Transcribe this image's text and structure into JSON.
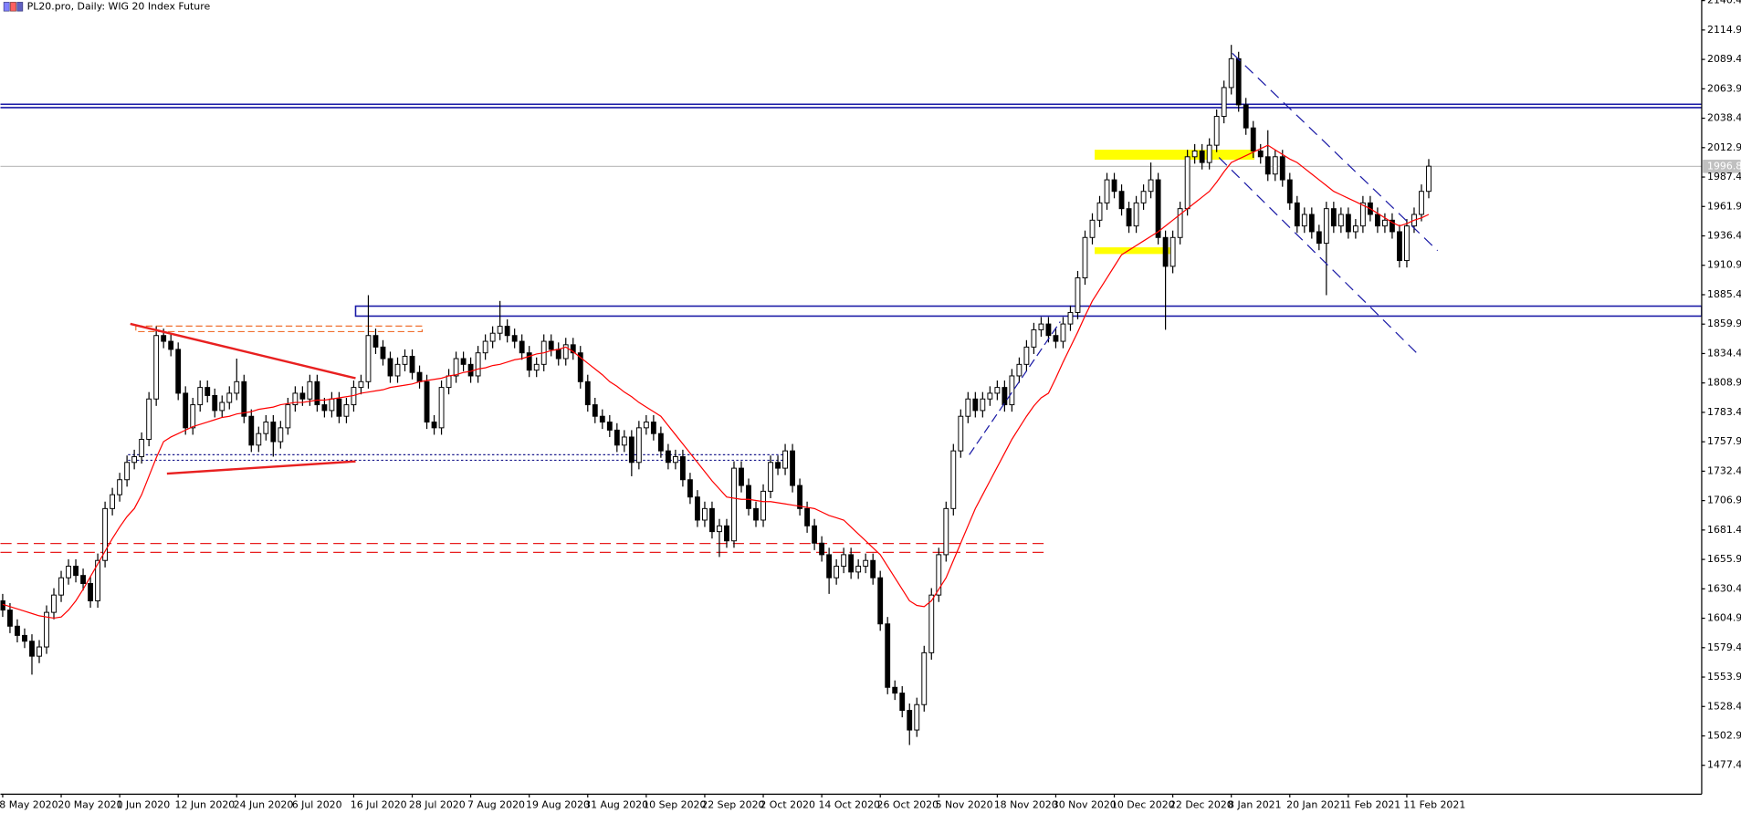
{
  "chart_data": {
    "type": "candlestick",
    "title": "PL20.pro, Daily:  WIG 20 Index Future",
    "categories": [
      "8 May 2020",
      null,
      null,
      null,
      null,
      null,
      null,
      null,
      "20 May 2020",
      null,
      null,
      null,
      null,
      null,
      null,
      null,
      "1 Jun 2020",
      null,
      null,
      null,
      null,
      null,
      null,
      null,
      "12 Jun 2020",
      null,
      null,
      null,
      null,
      null,
      null,
      null,
      "24 Jun 2020",
      null,
      null,
      null,
      null,
      null,
      null,
      null,
      "6 Jul 2020",
      null,
      null,
      null,
      null,
      null,
      null,
      null,
      "16 Jul 2020",
      null,
      null,
      null,
      null,
      null,
      null,
      null,
      "28 Jul 2020",
      null,
      null,
      null,
      null,
      null,
      null,
      null,
      "7 Aug 2020",
      null,
      null,
      null,
      null,
      null,
      null,
      null,
      "19 Aug 2020",
      null,
      null,
      null,
      null,
      null,
      null,
      null,
      "31 Aug 2020",
      null,
      null,
      null,
      null,
      null,
      null,
      null,
      "10 Sep 2020",
      null,
      null,
      null,
      null,
      null,
      null,
      null,
      "22 Sep 2020",
      null,
      null,
      null,
      null,
      null,
      null,
      null,
      "2 Oct 2020",
      null,
      null,
      null,
      null,
      null,
      null,
      null,
      "14 Oct 2020",
      null,
      null,
      null,
      null,
      null,
      null,
      null,
      "26 Oct 2020",
      null,
      null,
      null,
      null,
      null,
      null,
      null,
      "5 Nov 2020",
      null,
      null,
      null,
      null,
      null,
      null,
      null,
      "18 Nov 2020",
      null,
      null,
      null,
      null,
      null,
      null,
      null,
      "30 Nov 2020",
      null,
      null,
      null,
      null,
      null,
      null,
      null,
      "10 Dec 2020",
      null,
      null,
      null,
      null,
      null,
      null,
      null,
      "22 Dec 2020",
      null,
      null,
      null,
      null,
      null,
      null,
      null,
      "8 Jan 2021",
      null,
      null,
      null,
      null,
      null,
      null,
      null,
      "20 Jan 2021",
      null,
      null,
      null,
      null,
      null,
      null,
      null,
      "1 Feb 2021",
      null,
      null,
      null,
      null,
      null,
      null,
      null,
      "11 Feb 2021",
      null,
      null,
      null
    ],
    "open": [
      1620,
      1612,
      1598,
      1590,
      1585,
      1572,
      1580,
      1610,
      1625,
      1640,
      1650,
      1642,
      1635,
      1620,
      1655,
      1700,
      1712,
      1725,
      1740,
      1745,
      1760,
      1795,
      1850,
      1845,
      1838,
      1800,
      1770,
      1790,
      1805,
      1798,
      1785,
      1792,
      1800,
      1810,
      1780,
      1755,
      1765,
      1775,
      1758,
      1770,
      1790,
      1800,
      1795,
      1810,
      1790,
      1785,
      1795,
      1780,
      1790,
      1805,
      1810,
      1850,
      1840,
      1830,
      1815,
      1825,
      1832,
      1818,
      1810,
      1775,
      1770,
      1805,
      1815,
      1830,
      1825,
      1815,
      1835,
      1845,
      1852,
      1858,
      1850,
      1845,
      1835,
      1820,
      1825,
      1845,
      1838,
      1830,
      1842,
      1835,
      1810,
      1790,
      1780,
      1775,
      1768,
      1755,
      1762,
      1740,
      1770,
      1775,
      1765,
      1750,
      1740,
      1745,
      1725,
      1710,
      1690,
      1700,
      1680,
      1685,
      1672,
      1735,
      1720,
      1700,
      1690,
      1715,
      1740,
      1735,
      1750,
      1720,
      1700,
      1685,
      1670,
      1660,
      1640,
      1650,
      1660,
      1645,
      1650,
      1655,
      1640,
      1600,
      1545,
      1540,
      1525,
      1508,
      1530,
      1575,
      1625,
      1660,
      1700,
      1750,
      1780,
      1795,
      1785,
      1795,
      1800,
      1805,
      1790,
      1815,
      1825,
      1840,
      1855,
      1860,
      1850,
      1845,
      1860,
      1870,
      1900,
      1935,
      1950,
      1965,
      1985,
      1975,
      1960,
      1945,
      1965,
      1975,
      1985,
      1935,
      1910,
      1935,
      1960,
      2005,
      2010,
      2000,
      2015,
      2040,
      2065,
      2090,
      2050,
      2030,
      2010,
      2005,
      1990,
      2005,
      1985,
      1965,
      1945,
      1955,
      1940,
      1930,
      1960,
      1945,
      1955,
      1940,
      1945,
      1965,
      1955,
      1945,
      1950,
      1940,
      1915,
      1945,
      1955,
      1975
    ],
    "high": [
      1626,
      1618,
      1604,
      1596,
      1591,
      1586,
      1616,
      1631,
      1646,
      1656,
      1656,
      1648,
      1641,
      1661,
      1706,
      1718,
      1731,
      1746,
      1751,
      1766,
      1801,
      1858,
      1856,
      1851,
      1844,
      1806,
      1796,
      1811,
      1811,
      1804,
      1798,
      1806,
      1830,
      1816,
      1786,
      1771,
      1781,
      1781,
      1776,
      1796,
      1806,
      1806,
      1816,
      1816,
      1796,
      1801,
      1801,
      1796,
      1811,
      1816,
      1885,
      1856,
      1846,
      1836,
      1831,
      1838,
      1838,
      1824,
      1816,
      1781,
      1811,
      1821,
      1836,
      1836,
      1831,
      1841,
      1851,
      1858,
      1880,
      1864,
      1856,
      1851,
      1841,
      1831,
      1851,
      1851,
      1844,
      1848,
      1848,
      1841,
      1816,
      1796,
      1786,
      1781,
      1774,
      1768,
      1768,
      1776,
      1781,
      1781,
      1771,
      1756,
      1751,
      1751,
      1731,
      1716,
      1706,
      1706,
      1691,
      1691,
      1741,
      1741,
      1726,
      1706,
      1721,
      1746,
      1746,
      1756,
      1756,
      1726,
      1706,
      1691,
      1676,
      1666,
      1656,
      1666,
      1666,
      1656,
      1661,
      1661,
      1646,
      1606,
      1551,
      1546,
      1531,
      1536,
      1581,
      1631,
      1666,
      1706,
      1756,
      1786,
      1801,
      1801,
      1801,
      1806,
      1811,
      1811,
      1821,
      1831,
      1846,
      1861,
      1866,
      1866,
      1856,
      1866,
      1876,
      1906,
      1941,
      1956,
      1971,
      1991,
      1991,
      1981,
      1966,
      1971,
      1981,
      2000,
      1991,
      1941,
      1941,
      1966,
      2011,
      2016,
      2016,
      2021,
      2046,
      2071,
      2102,
      2096,
      2056,
      2036,
      2016,
      2028,
      2011,
      2011,
      1991,
      1971,
      1961,
      1961,
      1946,
      1966,
      1966,
      1961,
      1961,
      1951,
      1971,
      1971,
      1961,
      1956,
      1956,
      1946,
      1951,
      1961,
      1981,
      2003
    ],
    "low": [
      1606,
      1592,
      1584,
      1579,
      1556,
      1566,
      1574,
      1604,
      1619,
      1634,
      1636,
      1629,
      1614,
      1614,
      1649,
      1694,
      1706,
      1719,
      1734,
      1739,
      1754,
      1789,
      1839,
      1832,
      1794,
      1764,
      1764,
      1784,
      1792,
      1779,
      1779,
      1786,
      1794,
      1774,
      1749,
      1749,
      1759,
      1745,
      1752,
      1764,
      1784,
      1789,
      1789,
      1784,
      1779,
      1779,
      1774,
      1774,
      1784,
      1799,
      1804,
      1834,
      1824,
      1809,
      1809,
      1819,
      1812,
      1804,
      1769,
      1764,
      1764,
      1799,
      1809,
      1819,
      1809,
      1809,
      1829,
      1839,
      1846,
      1844,
      1839,
      1829,
      1814,
      1814,
      1819,
      1832,
      1824,
      1824,
      1829,
      1804,
      1784,
      1774,
      1769,
      1762,
      1749,
      1749,
      1728,
      1734,
      1764,
      1759,
      1744,
      1734,
      1734,
      1719,
      1704,
      1684,
      1684,
      1674,
      1658,
      1666,
      1666,
      1714,
      1694,
      1684,
      1684,
      1709,
      1729,
      1729,
      1714,
      1694,
      1679,
      1664,
      1654,
      1626,
      1634,
      1644,
      1639,
      1639,
      1644,
      1634,
      1594,
      1539,
      1534,
      1519,
      1495,
      1502,
      1524,
      1569,
      1619,
      1654,
      1694,
      1744,
      1774,
      1779,
      1779,
      1789,
      1794,
      1784,
      1784,
      1809,
      1819,
      1834,
      1849,
      1844,
      1839,
      1839,
      1854,
      1864,
      1894,
      1929,
      1944,
      1959,
      1969,
      1954,
      1939,
      1939,
      1959,
      1969,
      1929,
      1855,
      1904,
      1929,
      1954,
      1999,
      1994,
      1994,
      2009,
      2034,
      2059,
      2044,
      2024,
      2004,
      1999,
      1984,
      1984,
      1979,
      1959,
      1939,
      1939,
      1934,
      1924,
      1885,
      1939,
      1939,
      1934,
      1934,
      1939,
      1949,
      1939,
      1939,
      1934,
      1909,
      1909,
      1939,
      1949,
      1969
    ],
    "close": [
      1612,
      1598,
      1590,
      1585,
      1572,
      1580,
      1610,
      1625,
      1640,
      1650,
      1642,
      1635,
      1620,
      1655,
      1700,
      1712,
      1725,
      1740,
      1745,
      1760,
      1795,
      1850,
      1845,
      1838,
      1800,
      1770,
      1790,
      1805,
      1798,
      1785,
      1792,
      1800,
      1810,
      1780,
      1755,
      1765,
      1775,
      1758,
      1770,
      1790,
      1800,
      1795,
      1810,
      1790,
      1785,
      1795,
      1780,
      1790,
      1805,
      1810,
      1850,
      1840,
      1830,
      1815,
      1825,
      1832,
      1818,
      1810,
      1775,
      1770,
      1805,
      1815,
      1830,
      1825,
      1815,
      1835,
      1845,
      1852,
      1858,
      1850,
      1845,
      1835,
      1820,
      1825,
      1845,
      1838,
      1830,
      1842,
      1835,
      1810,
      1790,
      1780,
      1775,
      1768,
      1755,
      1762,
      1740,
      1770,
      1775,
      1765,
      1750,
      1740,
      1745,
      1725,
      1710,
      1690,
      1700,
      1680,
      1685,
      1672,
      1735,
      1720,
      1700,
      1690,
      1715,
      1740,
      1735,
      1750,
      1720,
      1700,
      1685,
      1670,
      1660,
      1640,
      1650,
      1660,
      1645,
      1650,
      1655,
      1640,
      1600,
      1545,
      1540,
      1525,
      1508,
      1530,
      1575,
      1625,
      1660,
      1700,
      1750,
      1780,
      1795,
      1785,
      1795,
      1800,
      1805,
      1790,
      1815,
      1825,
      1840,
      1855,
      1860,
      1850,
      1845,
      1860,
      1870,
      1900,
      1935,
      1950,
      1965,
      1985,
      1975,
      1960,
      1945,
      1965,
      1975,
      1985,
      1935,
      1910,
      1935,
      1960,
      2005,
      2010,
      2000,
      2015,
      2040,
      2065,
      2090,
      2050,
      2030,
      2010,
      2005,
      1990,
      2005,
      1985,
      1965,
      1945,
      1955,
      1940,
      1930,
      1960,
      1945,
      1955,
      1940,
      1945,
      1965,
      1955,
      1945,
      1950,
      1940,
      1915,
      1945,
      1955,
      1975,
      1996.8
    ],
    "up_color": "#ffffff",
    "down_color": "#000000",
    "moving_average": {
      "color": "#ff0000",
      "values": [
        1617,
        1615,
        1613,
        1611,
        1609,
        1607,
        1606,
        1605,
        1606,
        1612,
        1620,
        1630,
        1641,
        1652,
        1663,
        1674,
        1684,
        1693,
        1700,
        1712,
        1728,
        1744,
        1758,
        1762,
        1765,
        1768,
        1771,
        1773,
        1775,
        1777,
        1779,
        1780,
        1782,
        1783,
        1784,
        1786,
        1787,
        1788,
        1790,
        1791,
        1792,
        1792,
        1793,
        1794,
        1794,
        1795,
        1796,
        1797,
        1798,
        1800,
        1801,
        1802,
        1803,
        1805,
        1806,
        1807,
        1808,
        1810,
        1811,
        1812,
        1813,
        1815,
        1816,
        1818,
        1819,
        1821,
        1822,
        1824,
        1825,
        1827,
        1829,
        1830,
        1832,
        1834,
        1835,
        1837,
        1838,
        1840,
        1836,
        1831,
        1826,
        1821,
        1816,
        1810,
        1806,
        1801,
        1797,
        1792,
        1788,
        1784,
        1780,
        1772,
        1764,
        1756,
        1748,
        1740,
        1732,
        1724,
        1717,
        1710,
        1709,
        1708,
        1708,
        1707,
        1706,
        1706,
        1705,
        1704,
        1703,
        1702,
        1701,
        1700,
        1697,
        1694,
        1692,
        1690,
        1684,
        1678,
        1672,
        1666,
        1660,
        1650,
        1640,
        1630,
        1620,
        1616,
        1615,
        1620,
        1630,
        1640,
        1655,
        1670,
        1685,
        1700,
        1712,
        1724,
        1736,
        1748,
        1760,
        1770,
        1780,
        1789,
        1796,
        1800,
        1813,
        1827,
        1840,
        1853,
        1867,
        1880,
        1890,
        1900,
        1910,
        1920,
        1924,
        1928,
        1932,
        1936,
        1940,
        1945,
        1950,
        1955,
        1960,
        1965,
        1970,
        1975,
        1983,
        1992,
        2000,
        2003,
        2006,
        2009,
        2012,
        2015,
        2011,
        2007,
        2003,
        2000,
        1995,
        1990,
        1985,
        1980,
        1975,
        1972,
        1969,
        1966,
        1963,
        1960,
        1956,
        1952,
        1948,
        1945,
        1947,
        1950,
        1952,
        1955
      ]
    },
    "ylim": [
      1452.4,
      2140.9
    ],
    "yticks": [
      2140.4,
      2114.9,
      2089.4,
      2063.9,
      2038.4,
      2012.9,
      1987.4,
      1961.9,
      1936.4,
      1910.9,
      1885.4,
      1859.9,
      1834.4,
      1808.9,
      1783.4,
      1757.9,
      1732.4,
      1706.9,
      1681.4,
      1655.9,
      1630.4,
      1604.9,
      1579.4,
      1553.9,
      1528.4,
      1502.9,
      1477.4
    ]
  }
}
